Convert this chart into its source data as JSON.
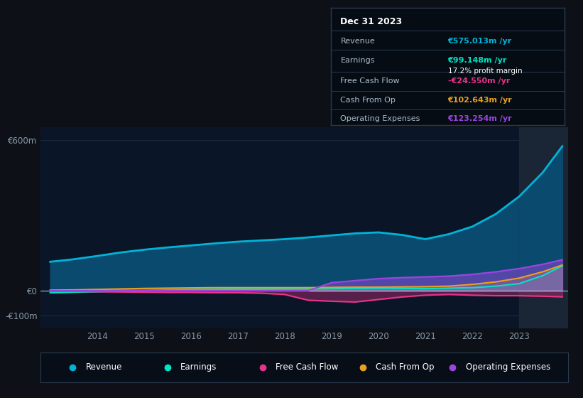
{
  "background_color": "#0d1117",
  "plot_bg_color": "#0a1628",
  "years": [
    2013.0,
    2013.5,
    2014.0,
    2014.5,
    2015.0,
    2015.5,
    2016.0,
    2016.5,
    2017.0,
    2017.5,
    2018.0,
    2018.5,
    2019.0,
    2019.5,
    2020.0,
    2020.5,
    2021.0,
    2021.5,
    2022.0,
    2022.5,
    2023.0,
    2023.5,
    2023.92
  ],
  "revenue": [
    115,
    125,
    138,
    152,
    163,
    172,
    180,
    188,
    195,
    200,
    205,
    212,
    220,
    228,
    232,
    222,
    205,
    225,
    255,
    305,
    375,
    470,
    575
  ],
  "earnings": [
    -8,
    -6,
    -4,
    -2,
    0,
    2,
    4,
    5,
    6,
    6,
    7,
    7,
    8,
    9,
    10,
    9,
    8,
    10,
    12,
    18,
    28,
    60,
    99
  ],
  "free_cash_flow": [
    -2,
    -3,
    -4,
    -5,
    -6,
    -7,
    -7,
    -8,
    -8,
    -10,
    -15,
    -38,
    -42,
    -45,
    -35,
    -25,
    -18,
    -15,
    -18,
    -20,
    -20,
    -22,
    -24.5
  ],
  "cash_from_op": [
    2,
    3,
    5,
    7,
    9,
    10,
    11,
    12,
    12,
    12,
    12,
    12,
    13,
    14,
    14,
    15,
    16,
    18,
    25,
    35,
    50,
    75,
    102
  ],
  "operating_expenses": [
    0,
    0,
    0,
    0,
    0,
    0,
    0,
    0,
    0,
    0,
    0,
    0,
    32,
    40,
    48,
    52,
    55,
    58,
    65,
    75,
    88,
    105,
    123
  ],
  "revenue_color": "#00b4d8",
  "revenue_fill_color": "#0a4a6e",
  "earnings_color": "#00e5c4",
  "fcf_color": "#e8338a",
  "cashfromop_color": "#e8a020",
  "opex_color": "#9b45e0",
  "ylim_min": -150,
  "ylim_max": 650,
  "ytick_vals": [
    -100,
    0,
    600
  ],
  "ytick_labels": [
    "-€100m",
    "€0",
    "€600m"
  ],
  "xtick_vals": [
    2014,
    2015,
    2016,
    2017,
    2018,
    2019,
    2020,
    2021,
    2022,
    2023
  ],
  "grid_color": "#1e2d3d",
  "text_color": "#8899aa",
  "zero_line_color": "#ccddee",
  "info_box_bg": "#060c14",
  "info_box_border": "#2a3a50",
  "info_date": "Dec 31 2023",
  "info_revenue_label": "Revenue",
  "info_revenue_value": "€575.013m /yr",
  "info_earnings_label": "Earnings",
  "info_earnings_value": "€99.148m /yr",
  "info_margin": "17.2% profit margin",
  "info_fcf_label": "Free Cash Flow",
  "info_fcf_value": "-€24.550m /yr",
  "info_cashop_label": "Cash From Op",
  "info_cashop_value": "€102.643m /yr",
  "info_opex_label": "Operating Expenses",
  "info_opex_value": "€123.254m /yr",
  "legend_items": [
    "Revenue",
    "Earnings",
    "Free Cash Flow",
    "Cash From Op",
    "Operating Expenses"
  ],
  "legend_colors": [
    "#00b4d8",
    "#00e5c4",
    "#e8338a",
    "#e8a020",
    "#9b45e0"
  ],
  "highlight_x_start": 2023.0,
  "highlight_color": "#1a2535"
}
